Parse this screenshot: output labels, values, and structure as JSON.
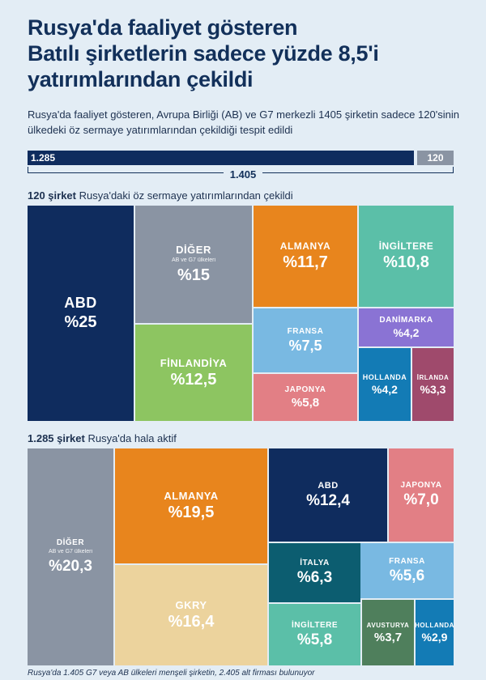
{
  "title_lines": [
    "Rusya'da faaliyet gösteren",
    "Batılı şirketlerin sadece yüzde 8,5'i",
    "yatırımlarından çekildi"
  ],
  "subtitle": "Rusya'da faaliyet gösteren, Avrupa Birliği (AB) ve G7 merkezli 1405 şirketin sadece 120'sinin ülkedeki öz sermaye yatırımlarından çekildiği tespit edildi",
  "total": {
    "active_label": "1.285",
    "withdrawn_label": "120",
    "total_label": "1.405"
  },
  "section1": {
    "bold": "120 şirket",
    "rest": " Rusya'daki öz sermaye yatırımlarından çekildi"
  },
  "section2": {
    "bold": "1.285 şirket",
    "rest": " Rusya'da hala aktif"
  },
  "footnote": "Rusya'da 1.405 G7 veya AB ülkeleri menşeli şirketin, 2.405 alt firması bulunuyor",
  "colors": {
    "navy": "#0f2c5e",
    "gray": "#8a94a3",
    "green": "#8dc561",
    "orange": "#e8851d",
    "teal": "#5bbfa8",
    "lightblue": "#79b9e2",
    "pink": "#e27f85",
    "purple": "#8a73d4",
    "blue": "#137bb5",
    "plum": "#9f4a6c",
    "sand": "#ecd39d",
    "darkteal": "#0c5d70",
    "olive": "#4f7f5c"
  },
  "chart_data": [
    {
      "type": "treemap",
      "title": "120 şirket Rusya'daki öz sermaye yatırımlarından çekildi",
      "unit": "%",
      "items": [
        {
          "name": "ABD",
          "value": 25,
          "label": "%25"
        },
        {
          "name": "DİĞER",
          "sub": "AB ve G7 ülkeleri",
          "value": 15,
          "label": "%15"
        },
        {
          "name": "FİNLANDİYA",
          "value": 12.5,
          "label": "%12,5"
        },
        {
          "name": "ALMANYA",
          "value": 11.7,
          "label": "%11,7"
        },
        {
          "name": "İNGİLTERE",
          "value": 10.8,
          "label": "%10,8"
        },
        {
          "name": "FRANSA",
          "value": 7.5,
          "label": "%7,5"
        },
        {
          "name": "JAPONYA",
          "value": 5.8,
          "label": "%5,8"
        },
        {
          "name": "DANİMARKA",
          "value": 4.2,
          "label": "%4,2"
        },
        {
          "name": "HOLLANDA",
          "value": 4.2,
          "label": "%4,2"
        },
        {
          "name": "İRLANDA",
          "value": 3.3,
          "label": "%3,3"
        }
      ]
    },
    {
      "type": "treemap",
      "title": "1.285 şirket Rusya'da hala aktif",
      "unit": "%",
      "items": [
        {
          "name": "DİĞER",
          "sub": "AB ve G7 ülkeleri",
          "value": 20.3,
          "label": "%20,3"
        },
        {
          "name": "ALMANYA",
          "value": 19.5,
          "label": "%19,5"
        },
        {
          "name": "GKRY",
          "value": 16.4,
          "label": "%16,4"
        },
        {
          "name": "ABD",
          "value": 12.4,
          "label": "%12,4"
        },
        {
          "name": "JAPONYA",
          "value": 7.0,
          "label": "%7,0"
        },
        {
          "name": "İTALYA",
          "value": 6.3,
          "label": "%6,3"
        },
        {
          "name": "FRANSA",
          "value": 5.6,
          "label": "%5,6"
        },
        {
          "name": "İNGİLTERE",
          "value": 5.8,
          "label": "%5,8"
        },
        {
          "name": "AVUSTURYA",
          "value": 3.7,
          "label": "%3,7"
        },
        {
          "name": "HOLLANDA",
          "value": 2.9,
          "label": "%2,9"
        }
      ]
    }
  ]
}
